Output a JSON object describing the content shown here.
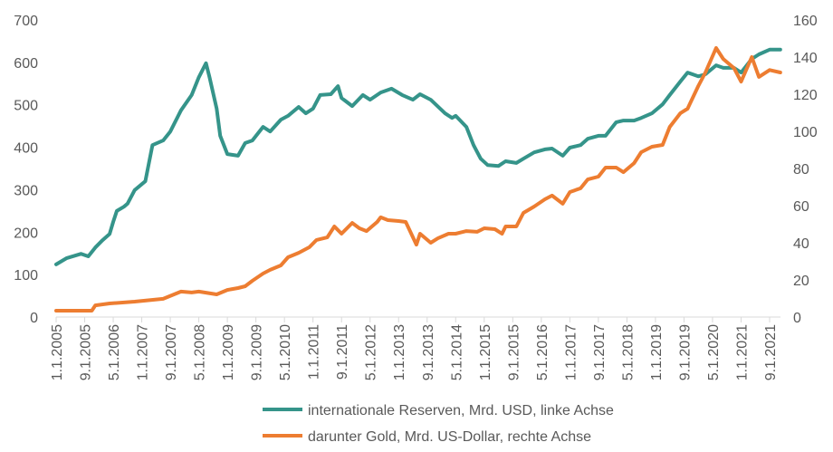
{
  "chart_data": {
    "type": "line",
    "title": "",
    "xlabel": "",
    "ylabel": "",
    "y_left": {
      "range": [
        0,
        700
      ],
      "ticks": [
        0,
        100,
        200,
        300,
        400,
        500,
        600,
        700
      ]
    },
    "y_right": {
      "range": [
        0,
        160
      ],
      "ticks": [
        0,
        20,
        40,
        60,
        80,
        100,
        120,
        140,
        160
      ]
    },
    "grid": false,
    "legend_position": "bottom",
    "x_tick_labels": [
      "1.1.2005",
      "9.1.2005",
      "5.1.2006",
      "1.1.2007",
      "9.1.2007",
      "5.1.2008",
      "1.1.2009",
      "9.1.2009",
      "5.1.2010",
      "1.1.2011",
      "9.1.2011",
      "5.1.2012",
      "1.1.2013",
      "9.1.2013",
      "5.1.2014",
      "1.1.2015",
      "9.1.2015",
      "5.1.2016",
      "1.1.2017",
      "9.1.2017",
      "5.1.2018",
      "1.1.2019",
      "9.1.2019",
      "5.1.2020",
      "1.1.2021",
      "9.1.2021"
    ],
    "series": [
      {
        "name": "internationale Reserven, Mrd. USD, linke Achse",
        "axis": "left",
        "color": "#35948a",
        "points": [
          [
            "2005-01",
            124
          ],
          [
            "2005-04",
            139
          ],
          [
            "2005-08",
            149
          ],
          [
            "2005-10",
            143
          ],
          [
            "2005-12",
            164
          ],
          [
            "2006-02",
            181
          ],
          [
            "2006-04",
            196
          ],
          [
            "2006-05",
            224
          ],
          [
            "2006-06",
            250
          ],
          [
            "2006-08",
            260
          ],
          [
            "2006-09",
            267
          ],
          [
            "2006-11",
            299
          ],
          [
            "2007-02",
            320
          ],
          [
            "2007-04",
            405
          ],
          [
            "2007-07",
            416
          ],
          [
            "2007-09",
            437
          ],
          [
            "2007-12",
            487
          ],
          [
            "2008-03",
            523
          ],
          [
            "2008-05",
            565
          ],
          [
            "2008-07",
            598
          ],
          [
            "2008-08",
            565
          ],
          [
            "2008-10",
            491
          ],
          [
            "2008-11",
            427
          ],
          [
            "2009-01",
            384
          ],
          [
            "2009-04",
            380
          ],
          [
            "2009-06",
            410
          ],
          [
            "2009-08",
            416
          ],
          [
            "2009-11",
            448
          ],
          [
            "2010-01",
            437
          ],
          [
            "2010-04",
            465
          ],
          [
            "2010-06",
            474
          ],
          [
            "2010-09",
            495
          ],
          [
            "2010-11",
            480
          ],
          [
            "2011-01",
            491
          ],
          [
            "2011-03",
            523
          ],
          [
            "2011-06",
            525
          ],
          [
            "2011-08",
            544
          ],
          [
            "2011-09",
            516
          ],
          [
            "2011-12",
            497
          ],
          [
            "2012-03",
            523
          ],
          [
            "2012-05",
            512
          ],
          [
            "2012-08",
            529
          ],
          [
            "2012-11",
            538
          ],
          [
            "2013-02",
            523
          ],
          [
            "2013-05",
            512
          ],
          [
            "2013-07",
            525
          ],
          [
            "2013-10",
            512
          ],
          [
            "2014-02",
            480
          ],
          [
            "2014-04",
            469
          ],
          [
            "2014-05",
            474
          ],
          [
            "2014-08",
            448
          ],
          [
            "2014-10",
            405
          ],
          [
            "2014-12",
            373
          ],
          [
            "2015-02",
            358
          ],
          [
            "2015-05",
            356
          ],
          [
            "2015-07",
            367
          ],
          [
            "2015-10",
            363
          ],
          [
            "2015-12",
            373
          ],
          [
            "2016-03",
            388
          ],
          [
            "2016-06",
            395
          ],
          [
            "2016-08",
            397
          ],
          [
            "2016-11",
            380
          ],
          [
            "2017-01",
            399
          ],
          [
            "2017-04",
            405
          ],
          [
            "2017-06",
            420
          ],
          [
            "2017-09",
            427
          ],
          [
            "2017-11",
            427
          ],
          [
            "2018-02",
            459
          ],
          [
            "2018-04",
            463
          ],
          [
            "2018-07",
            463
          ],
          [
            "2018-09",
            469
          ],
          [
            "2018-12",
            480
          ],
          [
            "2019-03",
            501
          ],
          [
            "2019-05",
            523
          ],
          [
            "2019-08",
            555
          ],
          [
            "2019-10",
            576
          ],
          [
            "2020-01",
            567
          ],
          [
            "2020-03",
            572
          ],
          [
            "2020-06",
            593
          ],
          [
            "2020-08",
            587
          ],
          [
            "2020-11",
            587
          ],
          [
            "2021-01",
            576
          ],
          [
            "2021-04",
            608
          ],
          [
            "2021-06",
            619
          ],
          [
            "2021-09",
            630
          ],
          [
            "2021-12",
            630
          ]
        ]
      },
      {
        "name": "darunter Gold, Mrd. US-Dollar, rechte Achse",
        "axis": "right",
        "color": "#ed7d31",
        "points": [
          [
            "2005-01",
            3.4
          ],
          [
            "2005-11",
            3.4
          ],
          [
            "2005-12",
            6.3
          ],
          [
            "2006-04",
            7.3
          ],
          [
            "2006-11",
            8.3
          ],
          [
            "2007-07",
            9.8
          ],
          [
            "2007-12",
            13.7
          ],
          [
            "2008-03",
            13.2
          ],
          [
            "2008-05",
            13.7
          ],
          [
            "2008-10",
            12.2
          ],
          [
            "2009-01",
            14.6
          ],
          [
            "2009-04",
            15.6
          ],
          [
            "2009-06",
            16.6
          ],
          [
            "2009-08",
            19.5
          ],
          [
            "2009-11",
            23.4
          ],
          [
            "2010-01",
            25.4
          ],
          [
            "2010-04",
            27.8
          ],
          [
            "2010-06",
            32.2
          ],
          [
            "2010-09",
            34.6
          ],
          [
            "2010-12",
            37.6
          ],
          [
            "2011-02",
            41.5
          ],
          [
            "2011-05",
            42.9
          ],
          [
            "2011-07",
            48.8
          ],
          [
            "2011-09",
            44.9
          ],
          [
            "2011-12",
            50.7
          ],
          [
            "2012-02",
            47.8
          ],
          [
            "2012-04",
            46.3
          ],
          [
            "2012-07",
            51.2
          ],
          [
            "2012-08",
            53.7
          ],
          [
            "2012-10",
            52.2
          ],
          [
            "2013-01",
            51.7
          ],
          [
            "2013-03",
            51.2
          ],
          [
            "2013-06",
            39.0
          ],
          [
            "2013-07",
            44.9
          ],
          [
            "2013-10",
            40.0
          ],
          [
            "2013-12",
            42.4
          ],
          [
            "2014-03",
            44.9
          ],
          [
            "2014-05",
            44.9
          ],
          [
            "2014-08",
            46.3
          ],
          [
            "2014-11",
            45.9
          ],
          [
            "2015-01",
            47.8
          ],
          [
            "2015-04",
            47.3
          ],
          [
            "2015-06",
            44.9
          ],
          [
            "2015-07",
            48.8
          ],
          [
            "2015-10",
            48.8
          ],
          [
            "2015-12",
            56.1
          ],
          [
            "2016-03",
            59.5
          ],
          [
            "2016-06",
            63.4
          ],
          [
            "2016-08",
            65.4
          ],
          [
            "2016-11",
            61.0
          ],
          [
            "2017-01",
            67.3
          ],
          [
            "2017-04",
            69.3
          ],
          [
            "2017-06",
            74.1
          ],
          [
            "2017-09",
            75.6
          ],
          [
            "2017-11",
            80.5
          ],
          [
            "2018-02",
            80.5
          ],
          [
            "2018-04",
            78.0
          ],
          [
            "2018-07",
            82.9
          ],
          [
            "2018-09",
            88.8
          ],
          [
            "2018-12",
            91.7
          ],
          [
            "2019-03",
            92.7
          ],
          [
            "2019-05",
            102.4
          ],
          [
            "2019-08",
            109.8
          ],
          [
            "2019-10",
            112.2
          ],
          [
            "2020-01",
            124.4
          ],
          [
            "2020-03",
            131.7
          ],
          [
            "2020-06",
            144.9
          ],
          [
            "2020-08",
            139.0
          ],
          [
            "2020-11",
            134.1
          ],
          [
            "2021-01",
            126.8
          ],
          [
            "2021-04",
            140.0
          ],
          [
            "2021-06",
            129.3
          ],
          [
            "2021-09",
            133.0
          ],
          [
            "2021-12",
            131.7
          ]
        ]
      }
    ]
  }
}
